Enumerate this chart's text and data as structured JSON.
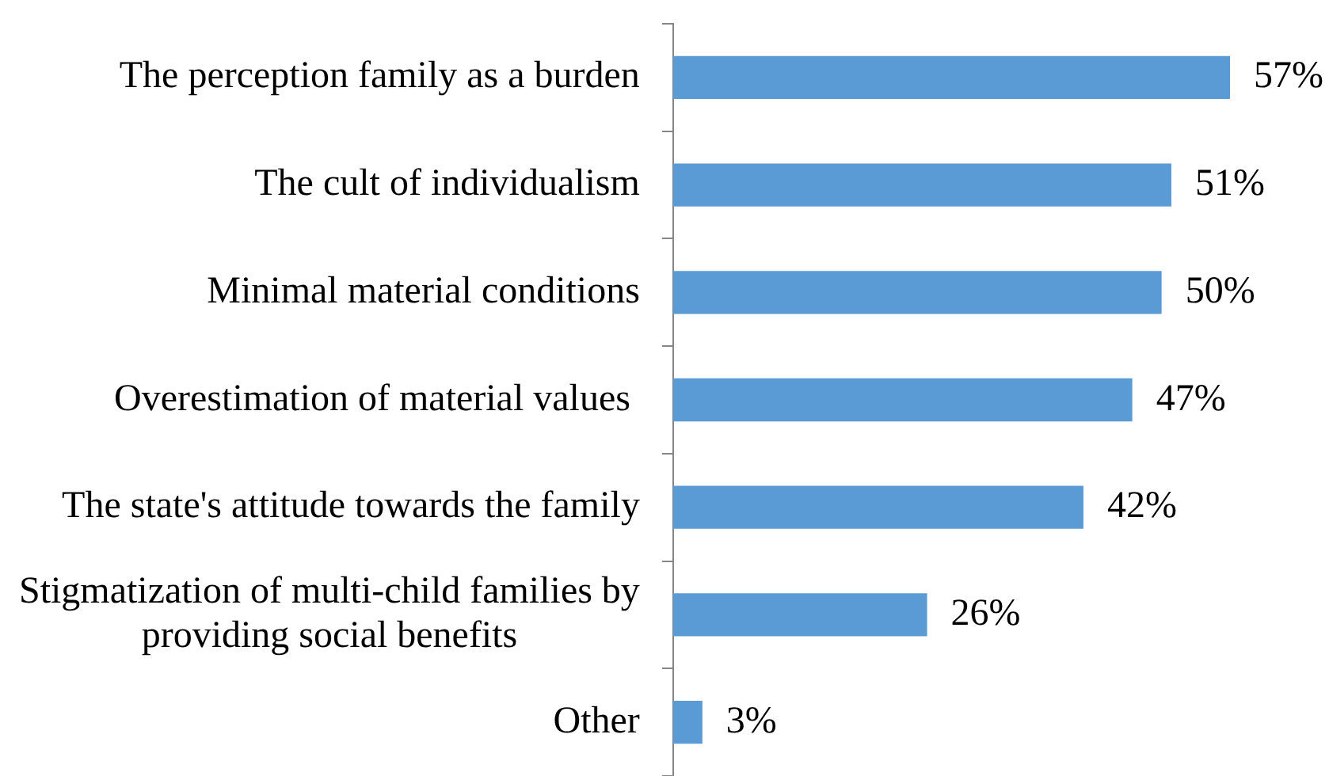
{
  "chart_data": {
    "type": "bar",
    "orientation": "horizontal",
    "categories": [
      "The perception family as a burden",
      "The cult of individualism",
      "Minimal material conditions",
      "Overestimation of material values ",
      "The state's attitude towards the family",
      "Stigmatization of multi-child families by providing social benefits",
      "Other"
    ],
    "values": [
      57,
      51,
      50,
      47,
      42,
      26,
      3
    ],
    "value_labels": [
      "57%",
      "51%",
      "50%",
      "47%",
      "42%",
      "26%",
      "3%"
    ],
    "color": "#5b9bd5"
  }
}
